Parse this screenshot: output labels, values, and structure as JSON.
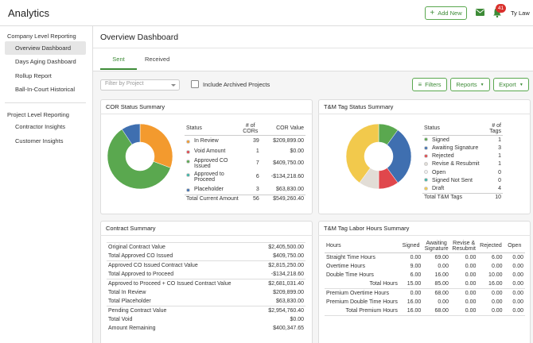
{
  "header": {
    "title": "Analytics",
    "add_button": "Add New",
    "badge": "41",
    "user": "Ty Law"
  },
  "sidebar": {
    "sections": [
      {
        "title": "Company Level Reporting",
        "items": [
          "Overview Dashboard",
          "Days Aging Dashboard",
          "Rollup Report",
          "Ball-In-Court Historical"
        ]
      },
      {
        "title": "Project Level Reporting",
        "items": [
          "Contractor Insights",
          "Customer Insights"
        ]
      }
    ]
  },
  "dashboard": {
    "title": "Overview Dashboard",
    "tabs": [
      "Sent",
      "Received"
    ],
    "filter_placeholder": "Filter by Project",
    "archive_checkbox": "Include Archived Projects",
    "buttons": [
      "Filters",
      "Reports",
      "Export"
    ]
  },
  "cor_summary": {
    "title": "COR Status Summary",
    "headers": [
      "Status",
      "# of CORs",
      "COR Value"
    ],
    "rows": [
      {
        "status": "In Review",
        "color": "#f39a2e",
        "count": 39,
        "value": 209899.0,
        "value_label": "$209,899.00"
      },
      {
        "status": "Void Amount",
        "color": "#e0474c",
        "count": 1,
        "value": 0,
        "value_label": "$0.00"
      },
      {
        "status": "Approved CO Issued",
        "color": "#5aa84f",
        "count": 7,
        "value": 409750.0,
        "value_label": "$409,750.00"
      },
      {
        "status": "Approved to Proceed",
        "color": "#3bb3a6",
        "count": 6,
        "value": -134218.6,
        "value_label": "-$134,218.60"
      },
      {
        "status": "Placeholder",
        "color": "#3f6fb0",
        "count": 3,
        "value": 63830.0,
        "value_label": "$63,830.00"
      }
    ],
    "total": {
      "label": "Total Current Amount",
      "count": 56,
      "value": "$549,260.40"
    }
  },
  "tm_summary": {
    "title": "T&M Tag Status Summary",
    "headers": [
      "Status",
      "# of Tags"
    ],
    "rows": [
      {
        "status": "Signed",
        "color": "#5aa84f",
        "count": 1
      },
      {
        "status": "Awaiting Signature",
        "color": "#3f6fb0",
        "count": 3
      },
      {
        "status": "Rejected",
        "color": "#e0474c",
        "count": 1
      },
      {
        "status": "Revise & Resubmit",
        "color": "#e2ddd6",
        "count": 1
      },
      {
        "status": "Open",
        "color": "#f2f2f2",
        "count": 0
      },
      {
        "status": "Signed Not Sent",
        "color": "#3bb3a6",
        "count": 0
      },
      {
        "status": "Draft",
        "color": "#f2c94c",
        "count": 4
      }
    ],
    "total": {
      "label": "Total T&M Tags",
      "count": 10
    }
  },
  "contract_summary": {
    "title": "Contract Summary",
    "rows": [
      {
        "label": "Original Contract Value",
        "value": "$2,405,500.00",
        "bold": true
      },
      {
        "label": "Total Approved CO Issued",
        "value": "$409,750.00",
        "bold": false
      },
      {
        "label": "Approved CO Issued Contract Value",
        "value": "$2,815,250.00",
        "bold": true
      },
      {
        "label": "Total Approved to Proceed",
        "value": "-$134,218.60",
        "bold": false
      },
      {
        "label": "Approved to Proceed + CO Issued Contract Value",
        "value": "$2,681,031.40",
        "bold": true
      },
      {
        "label": "Total In Review",
        "value": "$209,899.00",
        "bold": false
      },
      {
        "label": "Total Placeholder",
        "value": "$63,830.00",
        "bold": false
      },
      {
        "label": "Pending Contract Value",
        "value": "$2,954,760.40",
        "bold": true
      },
      {
        "label": "Total Void",
        "value": "$0.00",
        "bold": false
      },
      {
        "label": "Amount Remaining",
        "value": "$400,347.65",
        "bold": false
      }
    ]
  },
  "labor_hours": {
    "title": "T&M Tag Labor Hours Summary",
    "headers": [
      "Hours",
      "Signed",
      "Awaiting Signature",
      "Revise & Resubmit",
      "Rejected",
      "Open"
    ],
    "rows": [
      {
        "label": "Straight Time Hours",
        "cells": [
          "0.00",
          "69.00",
          "0.00",
          "6.00",
          "0.00"
        ],
        "total": false
      },
      {
        "label": "Overtime Hours",
        "cells": [
          "9.00",
          "0.00",
          "0.00",
          "0.00",
          "0.00"
        ],
        "total": false
      },
      {
        "label": "Double Time Hours",
        "cells": [
          "6.00",
          "16.00",
          "0.00",
          "10.00",
          "0.00"
        ],
        "total": false
      },
      {
        "label": "Total Hours",
        "cells": [
          "15.00",
          "85.00",
          "0.00",
          "16.00",
          "0.00"
        ],
        "total": true
      },
      {
        "label": "Premium Overtime Hours",
        "cells": [
          "0.00",
          "68.00",
          "0.00",
          "0.00",
          "0.00"
        ],
        "total": false
      },
      {
        "label": "Premium Double Time Hours",
        "cells": [
          "16.00",
          "0.00",
          "0.00",
          "0.00",
          "0.00"
        ],
        "total": false
      },
      {
        "label": "Total Premium Hours",
        "cells": [
          "16.00",
          "68.00",
          "0.00",
          "0.00",
          "0.00"
        ],
        "total": true
      }
    ]
  }
}
